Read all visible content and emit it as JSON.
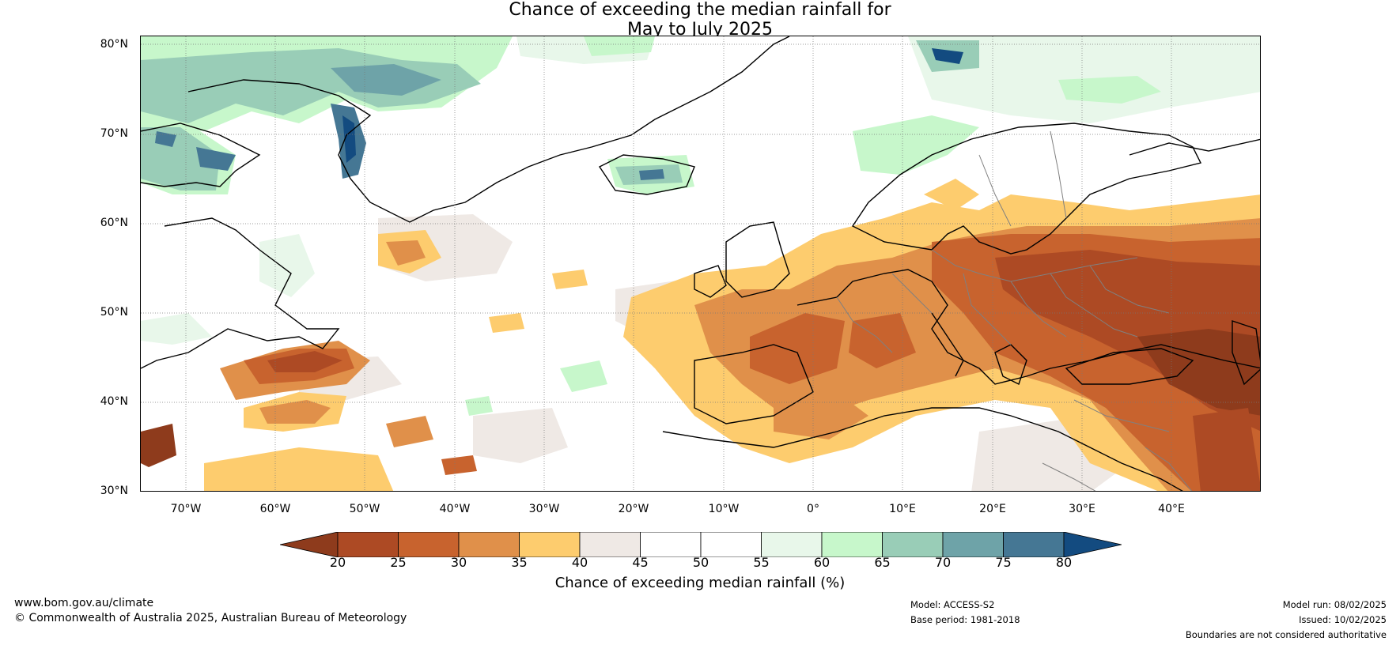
{
  "title": {
    "line1": "Chance of exceeding the median rainfall for",
    "line2": "May to July 2025"
  },
  "map": {
    "lat_labels": [
      "80°N",
      "70°N",
      "60°N",
      "50°N",
      "40°N",
      "30°N"
    ],
    "lon_labels": [
      "70°W",
      "60°W",
      "50°W",
      "40°W",
      "30°W",
      "20°W",
      "10°W",
      "0°",
      "10°E",
      "20°E",
      "30°E",
      "40°E"
    ]
  },
  "colorbar": {
    "ticks": [
      "20",
      "25",
      "30",
      "35",
      "40",
      "45",
      "50",
      "55",
      "60",
      "65",
      "70",
      "75",
      "80"
    ],
    "colors": [
      "#8e3b1c",
      "#ad4a24",
      "#c8632e",
      "#e0904a",
      "#fdcc6e",
      "#efe9e5",
      "#ffffff",
      "#ffffff",
      "#e8f7ea",
      "#c7f7cb",
      "#99cdb7",
      "#6ea3a8",
      "#457794",
      "#134b80"
    ],
    "label": "Chance of exceeding median rainfall (%)"
  },
  "footer": {
    "url": "www.bom.gov.au/climate",
    "copyright": "© Commonwealth of Australia 2025, Australian Bureau of Meteorology",
    "model": "Model: ACCESS-S2",
    "base_period": "Base period: 1981-2018",
    "model_run": "Model run: 08/02/2025",
    "issued": "Issued: 10/02/2025",
    "disclaimer": "Boundaries are not considered authoritative"
  }
}
